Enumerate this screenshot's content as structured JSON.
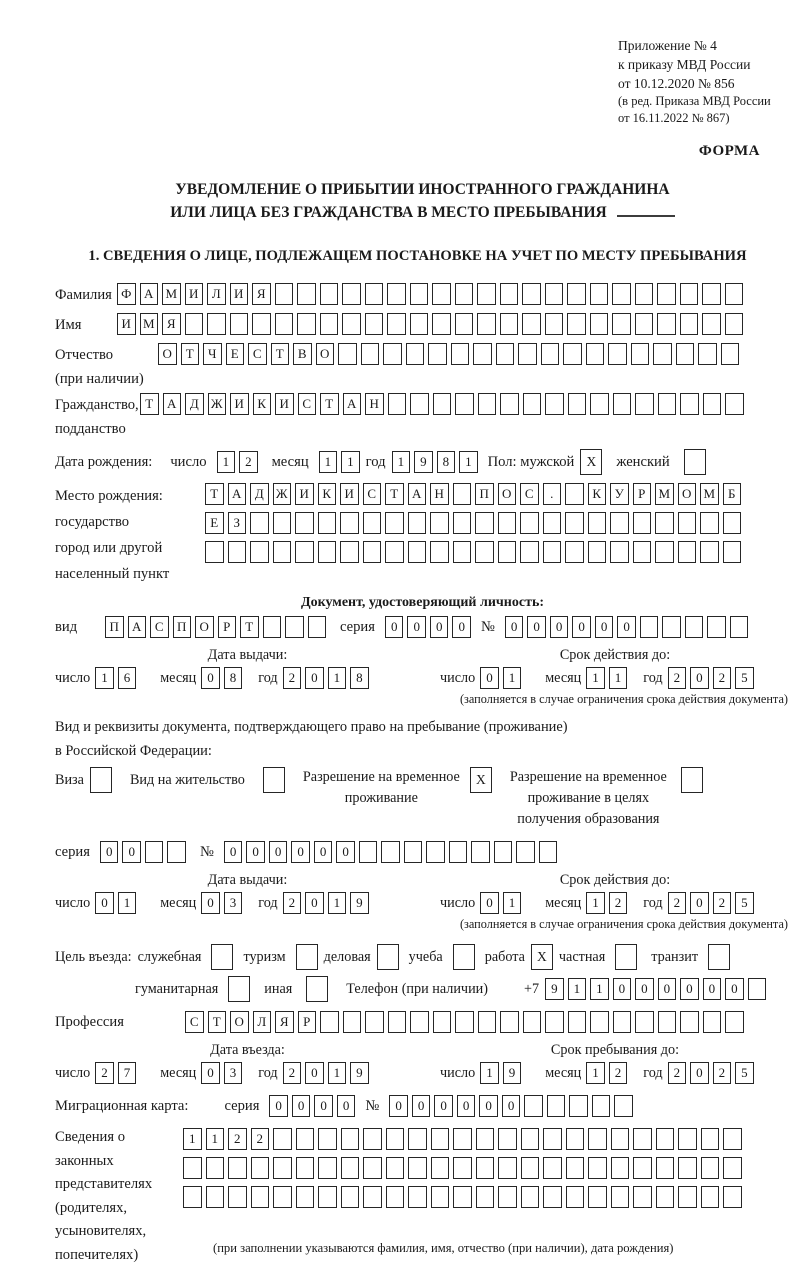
{
  "header": {
    "line1": "Приложение № 4",
    "line2": "к приказу МВД России",
    "line3": "от 10.12.2020 № 856",
    "line4": "(в ред. Приказа МВД России",
    "line5": "от 16.11.2022 № 867)",
    "form_label": "ФОРМА"
  },
  "title": {
    "line1": "УВЕДОМЛЕНИЕ О ПРИБЫТИИ ИНОСТРАННОГО ГРАЖДАНИНА",
    "line2": "ИЛИ ЛИЦА БЕЗ ГРАЖДАНСТВА В МЕСТО ПРЕБЫВАНИЯ"
  },
  "section1": {
    "heading": "1. СВЕДЕНИЯ О ЛИЦЕ, ПОДЛЕЖАЩЕМ ПОСТАНОВКЕ НА УЧЕТ ПО МЕСТУ ПРЕБЫВАНИЯ",
    "surname": {
      "label": "Фамилия",
      "cells": {
        "count": 28,
        "value": "ФАМИЛИЯ"
      }
    },
    "name": {
      "label": "Имя",
      "cells": {
        "count": 28,
        "value": "ИМЯ"
      }
    },
    "patronymic": {
      "label1": "Отчество",
      "label2": "(при наличии)",
      "cells": {
        "count": 26,
        "value": "ОТЧЕСТВО"
      }
    },
    "citizenship": {
      "label1": "Гражданство,",
      "label2": "подданство",
      "cells": {
        "count": 27,
        "value": "ТАДЖИКИСТАН"
      }
    },
    "birth_date": {
      "label": "Дата рождения:",
      "day_label": "число",
      "day": {
        "count": 2,
        "value": "12"
      },
      "month_label": "месяц",
      "month": {
        "count": 2,
        "value": "11"
      },
      "year_label": "год",
      "year": {
        "count": 4,
        "value": "1981"
      },
      "sex_label": "Пол: мужской",
      "male_checked": "X",
      "female_label": "женский",
      "female_checked": ""
    },
    "birth_place": {
      "label1": "Место рождения:",
      "label2": "государство",
      "label3": "город или другой",
      "label4": "населенный пункт",
      "row1": {
        "count": 24,
        "value": "ТАДЖИКИСТАН ПОС. КУРМОМБ"
      },
      "row2": {
        "count": 24,
        "value": "ЕЗ"
      },
      "row3": {
        "count": 24,
        "value": ""
      }
    }
  },
  "identity_doc": {
    "heading": "Документ, удостоверяющий личность:",
    "type_label": "вид",
    "type": {
      "count": 10,
      "value": "ПАСПОРТ"
    },
    "series_label": "серия",
    "series": {
      "count": 4,
      "value": "0000"
    },
    "number_label": "№",
    "number": {
      "count": 11,
      "value": "000000"
    },
    "issue_label": "Дата выдачи:",
    "issue": {
      "day_label": "число",
      "day": {
        "count": 2,
        "value": "16"
      },
      "month_label": "месяц",
      "month": {
        "count": 2,
        "value": "08"
      },
      "year_label": "год",
      "year": {
        "count": 4,
        "value": "2018"
      }
    },
    "valid_label": "Срок действия до:",
    "valid": {
      "day_label": "число",
      "day": {
        "count": 2,
        "value": "01"
      },
      "month_label": "месяц",
      "month": {
        "count": 2,
        "value": "11"
      },
      "year_label": "год",
      "year": {
        "count": 4,
        "value": "2025"
      }
    },
    "note": "(заполняется в случае ограничения срока действия документа)"
  },
  "residence_doc": {
    "intro1": "Вид и реквизиты документа, подтверждающего право на пребывание (проживание)",
    "intro2": "в Российской Федерации:",
    "visa_label": "Виза",
    "visa_checked": "",
    "permit_label": "Вид на жительство",
    "permit_checked": "",
    "temp_label1": "Разрешение на временное",
    "temp_label2": "проживание",
    "temp_checked": "X",
    "edu_label1": "Разрешение на временное",
    "edu_label2": "проживание в целях",
    "edu_label3": "получения образования",
    "edu_checked": "",
    "series_label": "серия",
    "series": {
      "count": 4,
      "value": "00"
    },
    "number_label": "№",
    "number": {
      "count": 15,
      "value": "000000"
    },
    "issue_label": "Дата выдачи:",
    "issue": {
      "day_label": "число",
      "day": {
        "count": 2,
        "value": "01"
      },
      "month_label": "месяц",
      "month": {
        "count": 2,
        "value": "03"
      },
      "year_label": "год",
      "year": {
        "count": 4,
        "value": "2019"
      }
    },
    "valid_label": "Срок действия до:",
    "valid": {
      "day_label": "число",
      "day": {
        "count": 2,
        "value": "01"
      },
      "month_label": "месяц",
      "month": {
        "count": 2,
        "value": "12"
      },
      "year_label": "год",
      "year": {
        "count": 4,
        "value": "2025"
      }
    },
    "note": "(заполняется в случае ограничения срока действия документа)"
  },
  "visit": {
    "purpose_label": "Цель въезда:",
    "opt_official": "служебная",
    "opt_official_checked": "",
    "opt_tourism": "туризм",
    "opt_tourism_checked": "",
    "opt_business": "деловая",
    "opt_business_checked": "",
    "opt_study": "учеба",
    "opt_study_checked": "",
    "opt_work": "работа",
    "opt_work_checked": "X",
    "opt_private": "частная",
    "opt_private_checked": "",
    "opt_transit": "транзит",
    "opt_transit_checked": "",
    "opt_humanitarian": "гуманитарная",
    "opt_humanitarian_checked": "",
    "opt_other": "иная",
    "opt_other_checked": "",
    "phone_label": "Телефон (при наличии)",
    "phone_prefix": "+7",
    "phone": {
      "count": 10,
      "value": "911000000"
    },
    "profession_label": "Профессия",
    "profession": {
      "count": 25,
      "value": "СТОЛЯР"
    },
    "entry_label": "Дата въезда:",
    "entry": {
      "day_label": "число",
      "day": {
        "count": 2,
        "value": "27"
      },
      "month_label": "месяц",
      "month": {
        "count": 2,
        "value": "03"
      },
      "year_label": "год",
      "year": {
        "count": 4,
        "value": "2019"
      }
    },
    "stay_label": "Срок пребывания до:",
    "stay": {
      "day_label": "число",
      "day": {
        "count": 2,
        "value": "19"
      },
      "month_label": "месяц",
      "month": {
        "count": 2,
        "value": "12"
      },
      "year_label": "год",
      "year": {
        "count": 4,
        "value": "2025"
      }
    }
  },
  "migration_card": {
    "label": "Миграционная карта:",
    "series_label": "серия",
    "series": {
      "count": 4,
      "value": "0000"
    },
    "number_label": "№",
    "number": {
      "count": 11,
      "value": "000000"
    }
  },
  "representatives": {
    "label1": "Сведения о",
    "label2": "законных",
    "label3": "представителях",
    "label4": "(родителях,",
    "label5": "усыновителях,",
    "label6": "попечителях)",
    "row1": {
      "count": 25,
      "value": "1122"
    },
    "row2": {
      "count": 25,
      "value": ""
    },
    "row3": {
      "count": 25,
      "value": ""
    },
    "note": "(при заполнении указываются фамилия, имя, отчество (при наличии), дата рождения)"
  }
}
